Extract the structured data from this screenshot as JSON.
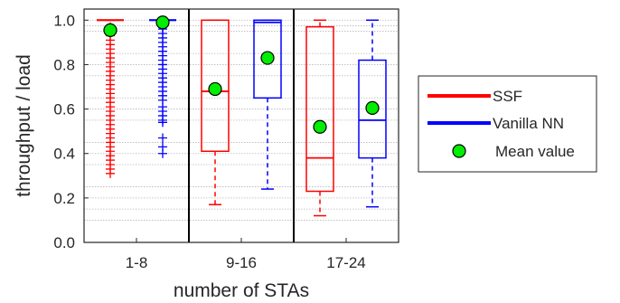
{
  "chart_data": {
    "type": "box",
    "title": "",
    "xlabel": "number of STAs",
    "ylabel": "throughput / load",
    "ylim": [
      0,
      1.05
    ],
    "yticks": [
      "0.0",
      "0.2",
      "0.4",
      "0.6",
      "0.8",
      "1.0"
    ],
    "ytick_values": [
      0,
      0.2,
      0.4,
      0.6,
      0.8,
      1.0
    ],
    "minor_grid": [
      0.1,
      0.15,
      0.25,
      0.35,
      0.45,
      0.55,
      0.65,
      0.75,
      0.85,
      0.95,
      0.975
    ],
    "categories": [
      "1-8",
      "9-16",
      "17-24"
    ],
    "grid": "minor dotted horizontal",
    "legend_position": "right",
    "series": [
      {
        "name": "SSF",
        "color": "#ff0000",
        "boxes": [
          {
            "category": "1-8",
            "q1": 1.0,
            "median": 1.0,
            "q3": 1.0,
            "whisker_low": 1.0,
            "whisker_high": 1.0,
            "mean": 0.955,
            "outliers": [
              0.31,
              0.33,
              0.35,
              0.37,
              0.39,
              0.41,
              0.43,
              0.45,
              0.47,
              0.49,
              0.51,
              0.53,
              0.55,
              0.57,
              0.59,
              0.61,
              0.63,
              0.65,
              0.67,
              0.69,
              0.71,
              0.73,
              0.75,
              0.77,
              0.79,
              0.81,
              0.83,
              0.85,
              0.87,
              0.89,
              0.91,
              0.93,
              0.95,
              0.97
            ]
          },
          {
            "category": "9-16",
            "q1": 0.41,
            "median": 0.68,
            "q3": 1.0,
            "whisker_low": 0.17,
            "whisker_high": 1.0,
            "mean": 0.69,
            "outliers": []
          },
          {
            "category": "17-24",
            "q1": 0.23,
            "median": 0.38,
            "q3": 0.97,
            "whisker_low": 0.12,
            "whisker_high": 1.0,
            "mean": 0.52,
            "outliers": []
          }
        ]
      },
      {
        "name": "Vanilla NN",
        "color": "#0000ff",
        "boxes": [
          {
            "category": "1-8",
            "q1": 1.0,
            "median": 1.0,
            "q3": 1.0,
            "whisker_low": 1.0,
            "whisker_high": 1.0,
            "mean": 0.99,
            "outliers": [
              0.4,
              0.43,
              0.47,
              0.54,
              0.55,
              0.57,
              0.59,
              0.61,
              0.64,
              0.66,
              0.68,
              0.7,
              0.72,
              0.74,
              0.76,
              0.78,
              0.8,
              0.82,
              0.84,
              0.86,
              0.88,
              0.9,
              0.92,
              0.94,
              0.96,
              0.97
            ]
          },
          {
            "category": "9-16",
            "q1": 0.65,
            "median": 0.99,
            "q3": 1.0,
            "whisker_low": 0.24,
            "whisker_high": 1.0,
            "mean": 0.83,
            "outliers": []
          },
          {
            "category": "17-24",
            "q1": 0.38,
            "median": 0.55,
            "q3": 0.82,
            "whisker_low": 0.16,
            "whisker_high": 1.0,
            "mean": 0.605,
            "outliers": []
          }
        ]
      }
    ],
    "mean_marker": {
      "label": "Mean value",
      "color": "#00ee00"
    }
  },
  "colors": {
    "axis": "#262626",
    "grid": "#b8b8b8",
    "separator": "#000000"
  }
}
